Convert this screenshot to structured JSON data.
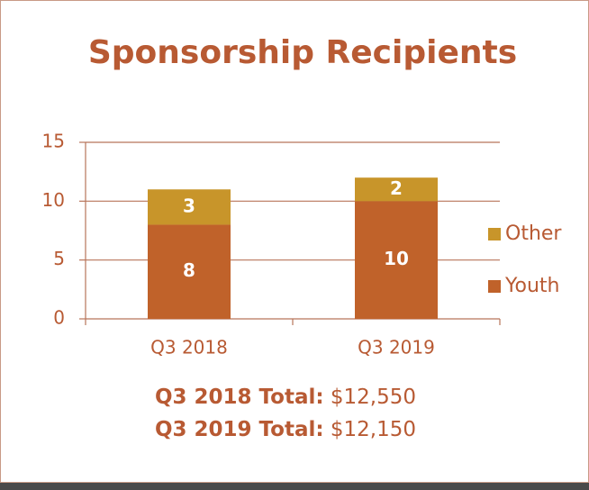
{
  "chart_data": {
    "type": "stacked_bar",
    "title": "Sponsorship Recipients",
    "categories": [
      "Q3 2018",
      "Q3 2019"
    ],
    "series": [
      {
        "name": "Youth",
        "color": "#c0622a",
        "values": [
          8,
          10
        ]
      },
      {
        "name": "Other",
        "color": "#c8952a",
        "values": [
          3,
          2
        ]
      }
    ],
    "ylim": [
      0,
      15
    ],
    "yticks": [
      0,
      5,
      10,
      15
    ],
    "grid": true,
    "legend": "right",
    "notes": [
      {
        "label": "Q3 2018 Total:",
        "value": "$12,550"
      },
      {
        "label": "Q3 2019 Total:",
        "value": "$12,150"
      }
    ]
  }
}
